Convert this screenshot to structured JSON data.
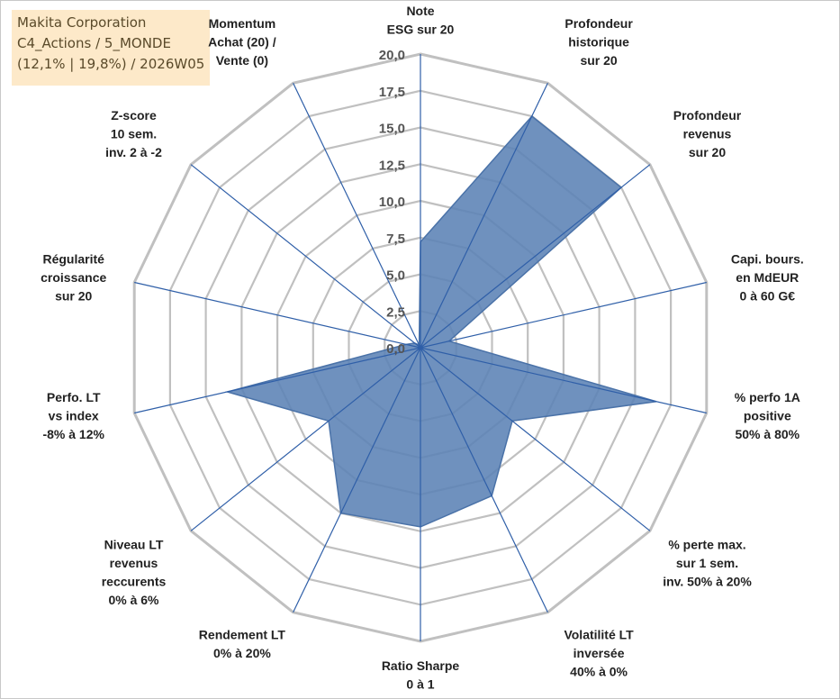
{
  "info_box": {
    "line1": "Makita Corporation",
    "line2": "C4_Actions / 5_MONDE",
    "line3": "(12,1% | 19,8%) / 2026W05"
  },
  "colors": {
    "fill": "#5b82b5",
    "stroke": "#4a72a8",
    "spoke": "#2f5fa8",
    "grid": "#c0c0c0"
  },
  "chart_data": {
    "type": "radar",
    "rmax": 20,
    "ticks": [
      "0,0",
      "2,5",
      "5,0",
      "7,5",
      "10,0",
      "12,5",
      "15,0",
      "17,5",
      "20,0"
    ],
    "axes": [
      {
        "label": [
          "Note",
          "ESG sur 20"
        ],
        "value": 7.2
      },
      {
        "label": [
          "Profondeur",
          "historique",
          "sur 20"
        ],
        "value": 17.5
      },
      {
        "label": [
          "Profondeur",
          "revenus",
          "sur 20"
        ],
        "value": 17.5
      },
      {
        "label": [
          "Capi. bours.",
          "en MdEUR",
          "0 à 60 G€"
        ],
        "value": 2.0
      },
      {
        "label": [
          "% perfo 1A",
          "positive",
          "50% à 80%"
        ],
        "value": 16.5
      },
      {
        "label": [
          "% perte max.",
          "sur 1 sem.",
          "inv. 50% à 20%"
        ],
        "value": 8.0
      },
      {
        "label": [
          "Volatilité LT",
          "inversée",
          "40% à 0%"
        ],
        "value": 11.2
      },
      {
        "label": [
          "Ratio Sharpe",
          "0 à 1"
        ],
        "value": 12.2
      },
      {
        "label": [
          "Rendement LT",
          "0% à 20%"
        ],
        "value": 12.5
      },
      {
        "label": [
          "Niveau LT",
          "revenus",
          "reccurents",
          "0% à 6%"
        ],
        "value": 8.0
      },
      {
        "label": [
          "Perfo. LT",
          "vs index",
          "-8% à 12%"
        ],
        "value": 13.5
      },
      {
        "label": [
          "Régularité",
          "croissance",
          "sur 20"
        ],
        "value": 1.0
      },
      {
        "label": [
          "Z-score",
          "10 sem.",
          "inv. 2 à -2"
        ],
        "value": 0.5
      },
      {
        "label": [
          "Momentum",
          "Achat (20) /",
          "Vente (0)"
        ],
        "value": 0.2
      }
    ]
  }
}
